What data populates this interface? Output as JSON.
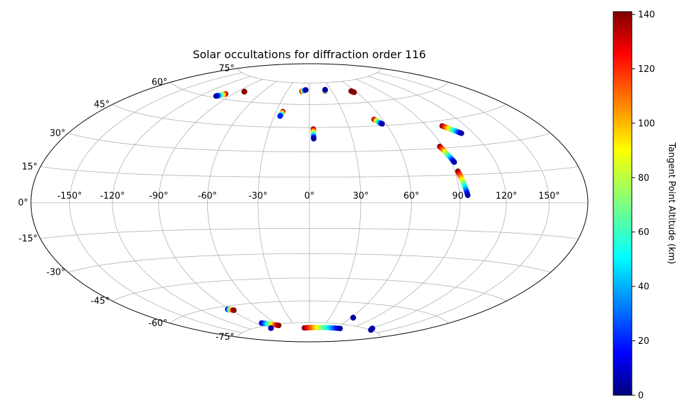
{
  "chart_data": {
    "type": "scatter",
    "projection": "hammer",
    "title": "Solar occultations for diffraction order 116",
    "lon_ticks": [
      "-150°",
      "-120°",
      "-90°",
      "-60°",
      "-30°",
      "0°",
      "30°",
      "60°",
      "90°",
      "120°",
      "150°"
    ],
    "lat_ticks": [
      "75°",
      "60°",
      "45°",
      "30°",
      "15°",
      "0°",
      "-15°",
      "-30°",
      "-45°",
      "-60°",
      "-75°"
    ],
    "grid": true,
    "colormap": "jet",
    "colorbar": {
      "label": "Tangent Point Altitude (km)",
      "range": [
        0,
        141
      ],
      "ticks": [
        "0",
        "20",
        "40",
        "60",
        "80",
        "100",
        "120",
        "140"
      ]
    },
    "tracks": [
      {
        "lon": [
          -98,
          -104
        ],
        "lat": [
          63,
          61
        ],
        "alt": [
          140,
          5
        ]
      },
      {
        "lon": [
          -82,
          -82
        ],
        "lat": [
          66,
          66
        ],
        "alt": [
          140,
          140
        ]
      },
      {
        "lon": [
          -24,
          -25
        ],
        "lat": [
          55,
          52
        ],
        "alt": [
          140,
          20
        ]
      },
      {
        "lon": [
          -10,
          -5
        ],
        "lat": [
          69,
          70
        ],
        "alt": [
          140,
          5
        ]
      },
      {
        "lon": [
          21,
          22
        ],
        "lat": [
          69,
          70
        ],
        "alt": [
          140,
          5
        ]
      },
      {
        "lon": [
          3,
          3
        ],
        "lat": [
          44,
          38
        ],
        "alt": [
          140,
          5
        ]
      },
      {
        "lon": [
          55,
          57
        ],
        "lat": [
          68,
          67
        ],
        "alt": [
          140,
          140
        ]
      },
      {
        "lon": [
          53,
          57
        ],
        "lat": [
          49,
          46
        ],
        "alt": [
          140,
          5
        ]
      },
      {
        "lon": [
          102,
          111
        ],
        "lat": [
          42,
          37
        ],
        "alt": [
          140,
          5
        ]
      },
      {
        "lon": [
          88,
          92
        ],
        "lat": [
          31,
          22
        ],
        "alt": [
          140,
          5
        ]
      },
      {
        "lon": [
          92,
          95
        ],
        "lat": [
          17,
          4
        ],
        "alt": [
          140,
          5
        ]
      },
      {
        "lon": [
          -92,
          -87
        ],
        "lat": [
          -62,
          -63
        ],
        "alt": [
          5,
          140
        ]
      },
      {
        "lon": [
          -81,
          -60
        ],
        "lat": [
          -73,
          -76
        ],
        "alt": [
          5,
          140
        ]
      },
      {
        "lon": [
          -83,
          -83
        ],
        "lat": [
          -77,
          -77
        ],
        "alt": [
          5,
          5
        ]
      },
      {
        "lon": [
          -12,
          70
        ],
        "lat": [
          -79,
          -78
        ],
        "alt": [
          140,
          5
        ]
      },
      {
        "lon": [
          63,
          63
        ],
        "lat": [
          -70,
          -70
        ],
        "alt": [
          5,
          5
        ]
      },
      {
        "lon": [
          122,
          128
        ],
        "lat": [
          -74,
          -75
        ],
        "alt": [
          5,
          5
        ]
      }
    ]
  }
}
